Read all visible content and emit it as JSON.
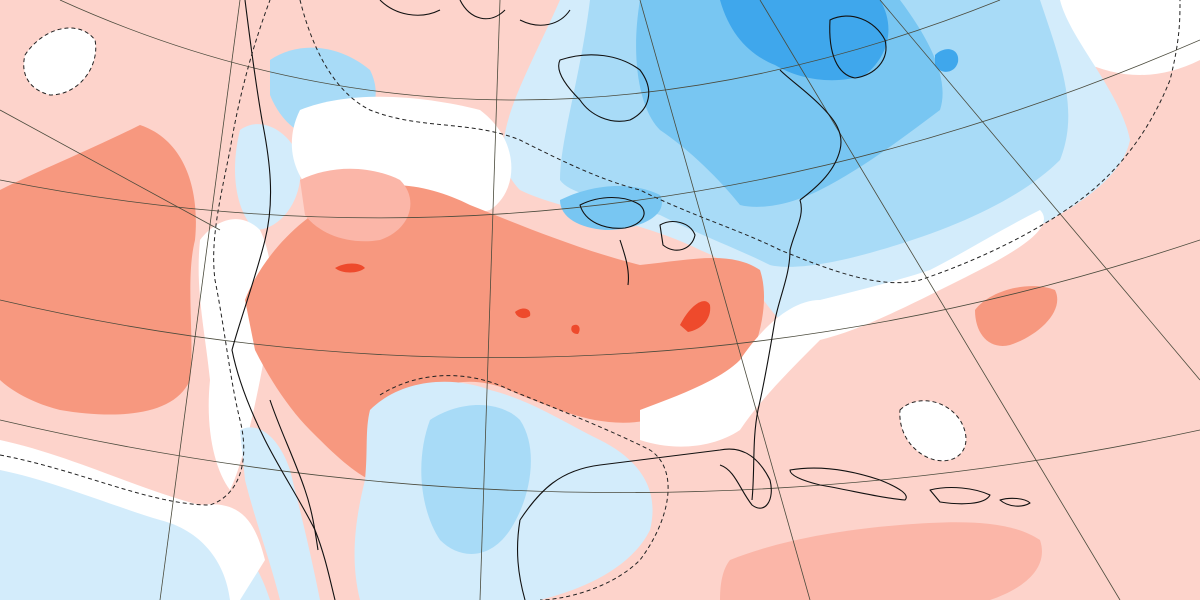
{
  "map": {
    "projection": "polar-stereographic",
    "region": "North America",
    "field": "anomaly",
    "colors": {
      "ocean_warm": "#fdd3cb",
      "warm_1": "#fbb6a8",
      "warm_2": "#f7987f",
      "warm_3": "#f3806a",
      "warm_4": "#ee4a2c",
      "neutral": "#ffffff",
      "cool_1": "#d3ecfb",
      "cool_2": "#a8dbf7",
      "cool_3": "#78c6f2",
      "cool_4": "#3fa7ec",
      "coastline": "#111111",
      "graticule": "#4a4a3c",
      "zero_contour": "#222222"
    },
    "zero_contour_style": "dashed",
    "graticule": true,
    "legend": false
  }
}
